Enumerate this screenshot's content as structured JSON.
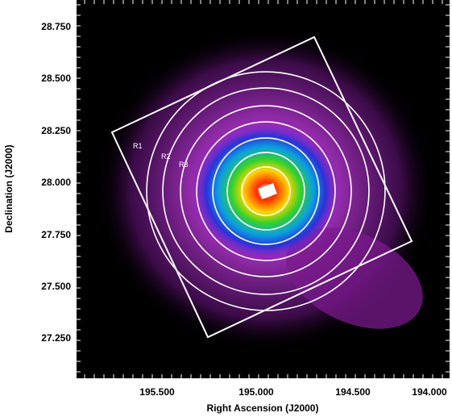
{
  "image": {
    "description_free": true,
    "colors": {
      "background": "#000000",
      "frame": "#ffffff",
      "contour": "#ffffff",
      "emission_outer": "#7a1a8c",
      "emission_mid": "#b51fd1",
      "emission_core": "#ff0000"
    }
  },
  "axes": {
    "x_title": "Right Ascension (J2000)",
    "y_title": "Declination (J2000)",
    "x_ticks": [
      "195.500",
      "195.000",
      "194.500",
      "194.000"
    ],
    "y_ticks": [
      "28.750",
      "28.500",
      "28.250",
      "28.000",
      "27.750",
      "27.500",
      "27.250"
    ],
    "x_range": [
      195.85,
      193.95
    ],
    "y_range": [
      27.05,
      28.85
    ]
  },
  "regions": {
    "labels": [
      "R1",
      "R2",
      "R3"
    ]
  }
}
